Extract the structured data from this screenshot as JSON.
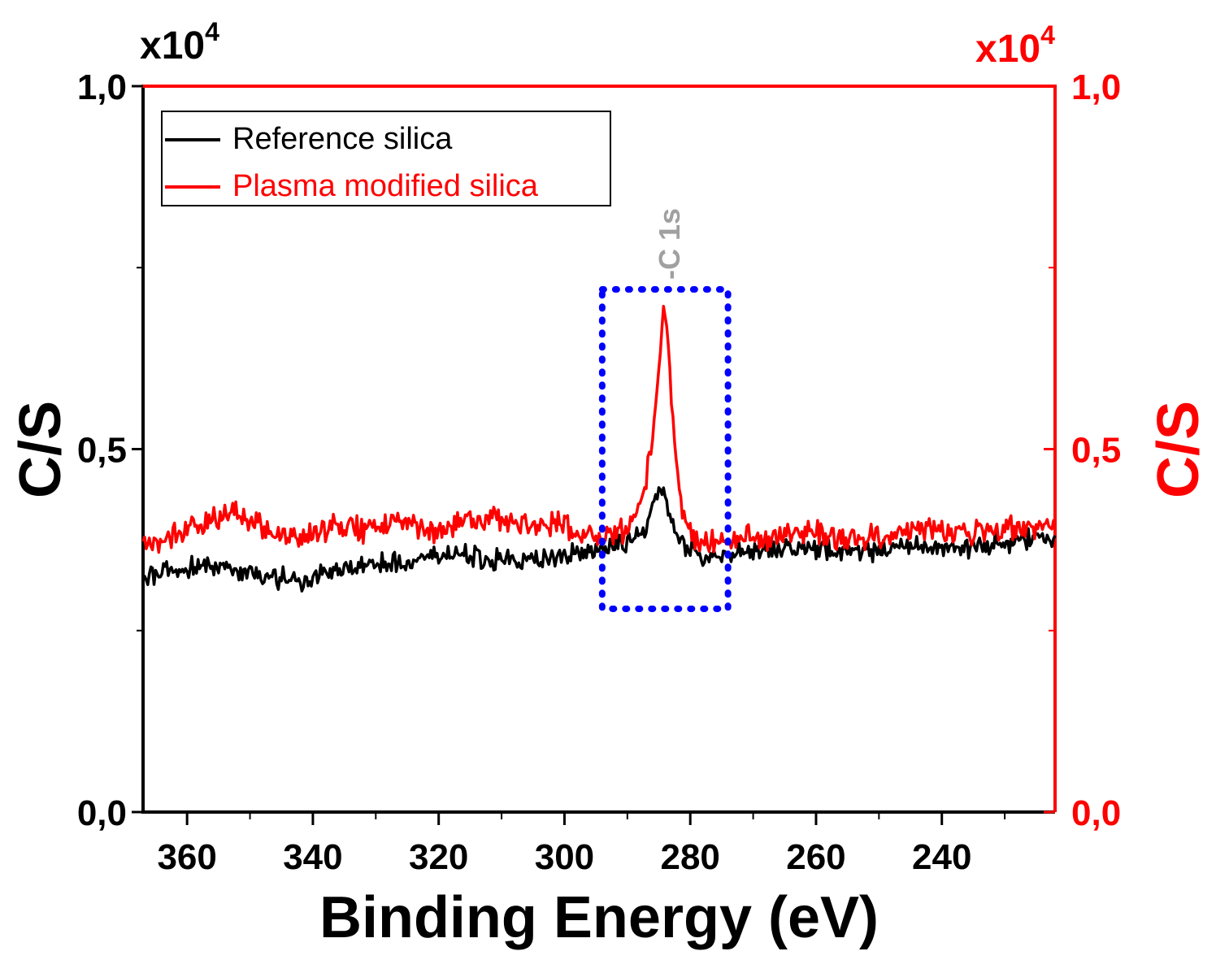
{
  "chart_data": {
    "type": "line",
    "title": "",
    "xlabel": "Binding Energy (eV)",
    "ylabel_left": "C/S",
    "ylabel_right": "C/S",
    "y_multiplier_left": "x10",
    "y_multiplier_right": "x10",
    "y_multiplier_exponent": "4",
    "xlim": [
      367,
      222
    ],
    "ylim_left": [
      0.0,
      1.0
    ],
    "ylim_right": [
      0.0,
      1.0
    ],
    "x_ticks": [
      "360",
      "340",
      "320",
      "300",
      "280",
      "260",
      "240"
    ],
    "y_ticks_left": [
      "0,0",
      "0,5",
      "1,0"
    ],
    "y_ticks_right": [
      "0,0",
      "0,5",
      "1,0"
    ],
    "colors": {
      "reference": "#000000",
      "plasma": "#ff0000",
      "annotation_box": "#0000ff",
      "annotation_text": "#a0a0a0",
      "right_axis": "#ff0000"
    },
    "legend": {
      "position": "top-left",
      "entries": [
        "Reference silica",
        "Plasma modified silica"
      ]
    },
    "annotation": {
      "text": "-C 1s",
      "x_range": [
        294,
        274
      ],
      "y_range": [
        0.28,
        0.72
      ]
    },
    "series": [
      {
        "name": "Reference silica",
        "axis": "left",
        "x": [
          367,
          362,
          357,
          352,
          347,
          342,
          337,
          332,
          327,
          322,
          317,
          312,
          307,
          302,
          297,
          294,
          291,
          289,
          287,
          286,
          285,
          284,
          283,
          282,
          280,
          277,
          272,
          267,
          262,
          257,
          252,
          247,
          242,
          237,
          232,
          227,
          222
        ],
        "values": [
          0.325,
          0.335,
          0.34,
          0.33,
          0.325,
          0.32,
          0.335,
          0.34,
          0.345,
          0.35,
          0.355,
          0.35,
          0.345,
          0.35,
          0.36,
          0.365,
          0.37,
          0.375,
          0.39,
          0.42,
          0.44,
          0.43,
          0.4,
          0.375,
          0.36,
          0.35,
          0.355,
          0.36,
          0.365,
          0.36,
          0.36,
          0.365,
          0.365,
          0.365,
          0.37,
          0.375,
          0.38
        ]
      },
      {
        "name": "Plasma modified silica",
        "axis": "right",
        "x": [
          367,
          362,
          357,
          352,
          347,
          342,
          337,
          332,
          327,
          322,
          317,
          312,
          307,
          302,
          297,
          294,
          291,
          289,
          288,
          287,
          286,
          285,
          284.5,
          284,
          283.5,
          283,
          282,
          281,
          280,
          278,
          275,
          272,
          267,
          262,
          257,
          252,
          247,
          242,
          237,
          232,
          227,
          222
        ],
        "values": [
          0.37,
          0.38,
          0.4,
          0.41,
          0.385,
          0.375,
          0.395,
          0.39,
          0.405,
          0.39,
          0.395,
          0.4,
          0.395,
          0.395,
          0.385,
          0.38,
          0.385,
          0.4,
          0.42,
          0.46,
          0.52,
          0.6,
          0.67,
          0.69,
          0.64,
          0.56,
          0.47,
          0.41,
          0.385,
          0.375,
          0.37,
          0.375,
          0.38,
          0.385,
          0.38,
          0.375,
          0.385,
          0.39,
          0.385,
          0.385,
          0.39,
          0.395
        ]
      }
    ]
  }
}
